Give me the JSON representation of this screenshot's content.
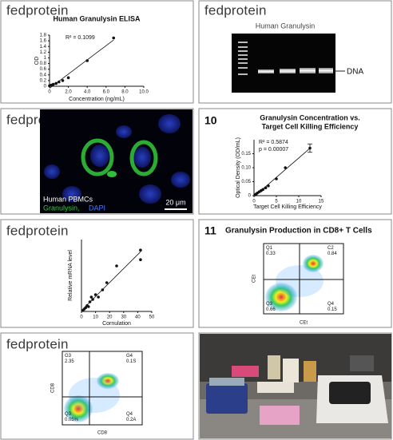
{
  "brand": "fedprotein",
  "chart_data": [
    {
      "type": "scatter",
      "title": [
        "Human Granulysin ELISA"
      ],
      "xlabel": "Concentration (ng/mL)",
      "ylabel": "OD",
      "x": [
        0,
        0.2,
        0.4,
        0.7,
        1.0,
        1.4,
        2.0,
        4.0,
        6.8
      ],
      "values": [
        0.02,
        0.04,
        0.07,
        0.1,
        0.15,
        0.2,
        0.3,
        0.9,
        1.7
      ],
      "color": "#111111",
      "xlim": [
        0,
        10
      ],
      "ylim": [
        0,
        1.8
      ],
      "xticks": [
        0,
        {
          "value": 2,
          "label": "2.0"
        },
        {
          "value": 4,
          "label": "4.0"
        },
        {
          "value": 6,
          "label": "6.0"
        },
        {
          "value": 8,
          "label": "8.0"
        },
        {
          "value": 10,
          "label": "10.0"
        }
      ],
      "yticks": [
        0,
        0.2,
        0.4,
        0.6,
        0.8,
        1.0,
        1.2,
        1.4,
        1.6,
        1.8
      ],
      "annotations": [
        "R² = 0.1099"
      ],
      "trendline": true
    },
    {
      "type": "scatter",
      "panel_number": "10",
      "title": [
        "Granulysin Concentration vs.",
        "Target Cell Killing Efficiency"
      ],
      "xlabel": "Target Cell Killing Efficiency",
      "ylabel": "Optical Density (OD/mL)",
      "x": [
        0.2,
        0.5,
        0.8,
        1.2,
        1.6,
        2.0,
        2.6,
        3.2,
        5.0,
        7.0,
        12.5
      ],
      "values": [
        0.003,
        0.006,
        0.01,
        0.014,
        0.018,
        0.022,
        0.028,
        0.035,
        0.06,
        0.1,
        0.17
      ],
      "errors": [
        null,
        null,
        null,
        null,
        null,
        null,
        null,
        null,
        null,
        null,
        0.015
      ],
      "color": "#111111",
      "xlim": [
        0,
        15
      ],
      "ylim": [
        0,
        0.2
      ],
      "xticks": [
        0,
        5,
        10,
        15
      ],
      "yticks": [
        0,
        0.05,
        {
          "value": 0.1,
          "label": "0.10"
        },
        0.15
      ],
      "annotations": [
        "R² = 0.5874",
        "p = 0.00007"
      ],
      "trendline": true
    },
    {
      "type": "scatter",
      "title": [],
      "xlabel": "Cornulation",
      "ylabel": "Relative mRNA level",
      "x": [
        1,
        2,
        3,
        4,
        5,
        6,
        7,
        8,
        10,
        12,
        15,
        18,
        25,
        42,
        42
      ],
      "values": [
        0.02,
        0.05,
        0.08,
        0.12,
        0.1,
        0.2,
        0.3,
        0.25,
        0.35,
        0.3,
        0.45,
        0.6,
        0.95,
        1.28,
        1.08
      ],
      "color": "#111111",
      "xlim": [
        0,
        50
      ],
      "ylim": [
        0,
        1.5
      ],
      "xticks": [
        0,
        10,
        20,
        30,
        40,
        50
      ],
      "yticks": [],
      "annotations": [],
      "trendline": true
    }
  ],
  "gel": {
    "title": "Human Granulysin",
    "label": "DNA"
  },
  "microscopy": {
    "sample": "Human PBMCs",
    "stain_green": "Granulysin,",
    "stain_blue": "DAPI",
    "scale": "20 μm"
  },
  "flow": [
    {
      "panel_number": "11",
      "title": "Granulysin Production in CD8+ T Cells",
      "xlabel": "CEt",
      "ylabel": "CEt",
      "quadrants": [
        "Q1\n0.33",
        "C2\n0.84",
        "Q3\n0.66",
        "Q4\n0.15"
      ]
    },
    {
      "xlabel": "CD8",
      "ylabel": "CD8",
      "quadrants": [
        "G3\n2.35",
        "G4\n0.1S",
        "Q3\n0.05%",
        "Q4\n0.2A"
      ]
    }
  ]
}
